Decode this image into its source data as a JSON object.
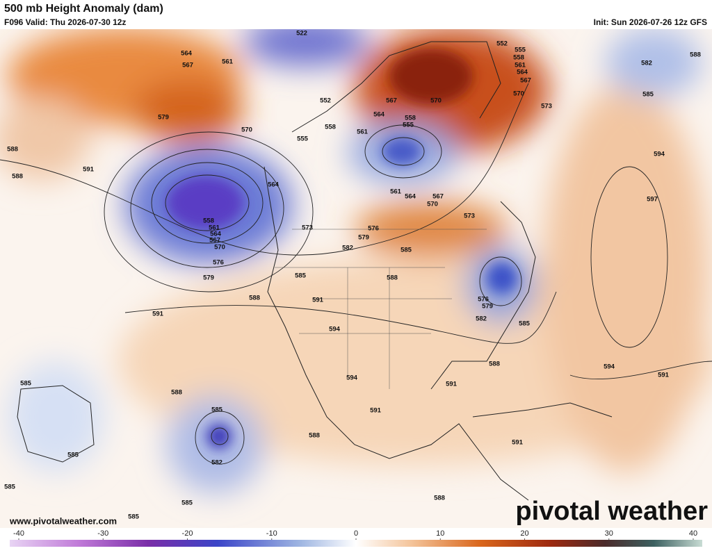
{
  "header": {
    "title": "500 mb Height Anomaly (dam)",
    "valid": "F096 Valid: Thu 2026-07-30 12z",
    "init": "Init: Sun 2026-07-26 12z GFS"
  },
  "footer": {
    "website": "www.pivotalweather.com",
    "logo": "pivotal weather"
  },
  "colorbar": {
    "ticks": [
      -40,
      -30,
      -20,
      -10,
      0,
      10,
      20,
      30,
      40
    ]
  },
  "contour_labels": [
    564,
    567,
    561,
    579,
    570,
    591,
    588,
    588,
    558,
    561,
    564,
    567,
    570,
    576,
    579,
    564,
    573,
    582,
    576,
    579,
    585,
    585,
    588,
    588,
    591,
    591,
    594,
    594,
    591,
    591,
    588,
    588,
    585,
    582,
    585,
    585,
    585,
    585,
    585,
    588,
    591,
    594,
    591,
    597,
    594,
    585,
    582,
    588,
    573,
    570,
    567,
    564,
    561,
    558,
    555,
    552,
    570,
    567,
    564,
    561,
    558,
    555,
    552,
    522,
    558,
    555,
    561,
    564,
    567,
    570,
    573,
    576,
    579,
    582,
    585,
    588
  ]
}
